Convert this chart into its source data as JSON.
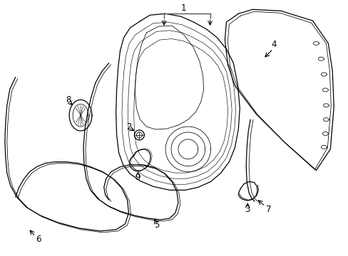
{
  "bg_color": "#ffffff",
  "line_color": "#000000",
  "lw": 0.9,
  "tlw": 0.55,
  "fs": 8.5
}
